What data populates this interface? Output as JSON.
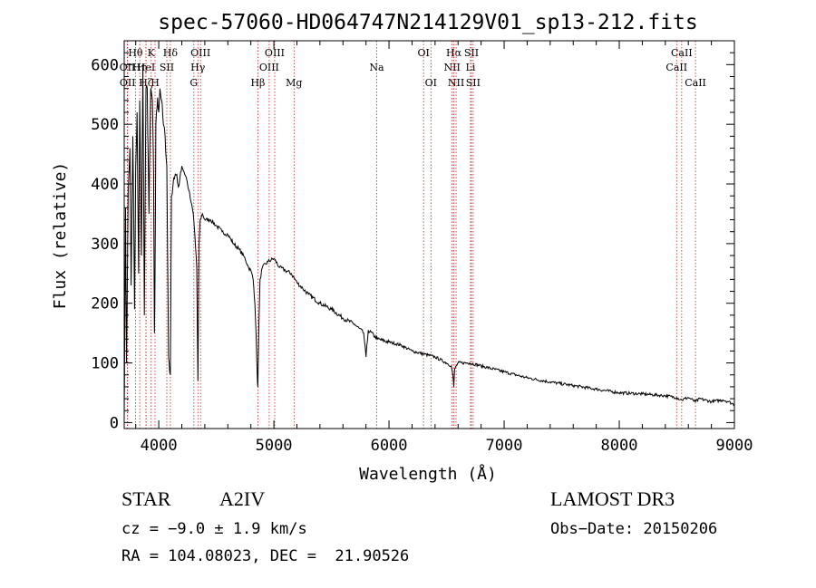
{
  "chart_data": {
    "type": "line",
    "title": "spec-57060-HD064747N214129V01_sp13-212.fits",
    "xlabel": "Wavelength (Å)",
    "ylabel": "Flux (relative)",
    "xlim": [
      3700,
      9000
    ],
    "ylim": [
      -10,
      640
    ],
    "x_ticks": [
      4000,
      5000,
      6000,
      7000,
      8000,
      9000
    ],
    "x_tick_labels": [
      "4000",
      "5000",
      "6000",
      "7000",
      "8000",
      "9000"
    ],
    "y_ticks": [
      0,
      100,
      200,
      300,
      400,
      500,
      600
    ],
    "y_tick_labels": [
      "0",
      "100",
      "200",
      "300",
      "400",
      "500",
      "600"
    ],
    "grid": false,
    "series": [
      {
        "name": "spectrum",
        "x": [
          3700,
          3705,
          3712,
          3720,
          3735,
          3750,
          3760,
          3775,
          3790,
          3800,
          3812,
          3825,
          3835,
          3850,
          3862,
          3875,
          3889,
          3900,
          3915,
          3930,
          3945,
          3955,
          3962,
          3968,
          3975,
          3990,
          4000,
          4010,
          4025,
          4040,
          4055,
          4070,
          4085,
          4101,
          4110,
          4130,
          4150,
          4170,
          4190,
          4200,
          4220,
          4240,
          4260,
          4280,
          4300,
          4315,
          4330,
          4340,
          4350,
          4360,
          4380,
          4400,
          4450,
          4500,
          4550,
          4600,
          4650,
          4700,
          4750,
          4780,
          4800,
          4820,
          4835,
          4845,
          4855,
          4861,
          4868,
          4880,
          4900,
          4950,
          5000,
          5050,
          5100,
          5150,
          5200,
          5250,
          5300,
          5400,
          5500,
          5600,
          5700,
          5780,
          5800,
          5820,
          5900,
          6000,
          6100,
          6200,
          6300,
          6400,
          6500,
          6540,
          6555,
          6563,
          6570,
          6585,
          6600,
          6700,
          6800,
          7000,
          7200,
          7400,
          7600,
          7800,
          8000,
          8200,
          8400,
          8498,
          8542,
          8600,
          8662,
          8700,
          8800,
          8900,
          8950,
          9000
        ],
        "values": [
          10,
          150,
          360,
          100,
          390,
          460,
          230,
          480,
          190,
          430,
          520,
          250,
          540,
          280,
          600,
          180,
          560,
          560,
          350,
          560,
          540,
          420,
          150,
          250,
          500,
          545,
          520,
          560,
          540,
          500,
          480,
          430,
          110,
          80,
          380,
          410,
          415,
          395,
          420,
          430,
          420,
          410,
          390,
          370,
          350,
          310,
          260,
          70,
          300,
          340,
          350,
          340,
          340,
          330,
          320,
          315,
          300,
          290,
          275,
          260,
          255,
          240,
          200,
          150,
          80,
          60,
          150,
          240,
          260,
          270,
          275,
          260,
          255,
          250,
          235,
          225,
          215,
          200,
          190,
          175,
          165,
          150,
          110,
          155,
          140,
          135,
          130,
          120,
          115,
          110,
          100,
          95,
          80,
          60,
          90,
          95,
          100,
          100,
          95,
          85,
          75,
          68,
          62,
          56,
          50,
          48,
          45,
          42,
          38,
          42,
          35,
          40,
          35,
          38,
          35,
          30
        ]
      }
    ],
    "line_markers": [
      {
        "label": "Hθ",
        "wave": 3798,
        "row": 0
      },
      {
        "label": "OII",
        "wave": 3727,
        "row": 1
      },
      {
        "label": "OII",
        "wave": 3729,
        "row": 2
      },
      {
        "label": "Hη",
        "wave": 3835,
        "row": 1
      },
      {
        "label": "Hζ",
        "wave": 3889,
        "row": 2
      },
      {
        "label": "HeI",
        "wave": 3889,
        "row": 1
      },
      {
        "label": "K",
        "wave": 3934,
        "row": 0
      },
      {
        "label": "H",
        "wave": 3968,
        "row": 2
      },
      {
        "label": "SII",
        "wave": 4070,
        "row": 1
      },
      {
        "label": "Hδ",
        "wave": 4101,
        "row": 0
      },
      {
        "label": "OIII",
        "wave": 4363,
        "row": 0
      },
      {
        "label": "Hγ",
        "wave": 4340,
        "row": 1
      },
      {
        "label": "G",
        "wave": 4305,
        "row": 2
      },
      {
        "label": "Hβ",
        "wave": 4861,
        "row": 2
      },
      {
        "label": "OIII",
        "wave": 5007,
        "row": 0
      },
      {
        "label": "OIII",
        "wave": 4959,
        "row": 1
      },
      {
        "label": "Mg",
        "wave": 5175,
        "row": 2
      },
      {
        "label": "Na",
        "wave": 5893,
        "row": 1
      },
      {
        "label": "OI",
        "wave": 6300,
        "row": 0
      },
      {
        "label": "OI",
        "wave": 6364,
        "row": 2
      },
      {
        "label": "Hα",
        "wave": 6563,
        "row": 0
      },
      {
        "label": "NII",
        "wave": 6548,
        "row": 1
      },
      {
        "label": "NII",
        "wave": 6583,
        "row": 2
      },
      {
        "label": "SII",
        "wave": 6716,
        "row": 0
      },
      {
        "label": "Li",
        "wave": 6708,
        "row": 1
      },
      {
        "label": "SII",
        "wave": 6731,
        "row": 2
      },
      {
        "label": "CaII",
        "wave": 8542,
        "row": 0
      },
      {
        "label": "CaII",
        "wave": 8498,
        "row": 1
      },
      {
        "label": "CaII",
        "wave": 8662,
        "row": 2
      }
    ]
  },
  "info": {
    "class": "STAR",
    "subclass": "A2IV",
    "survey": "LAMOST DR3",
    "cz": "cz = −9.0 ± 1.9 km/s",
    "obs_date": "Obs−Date: 20150206",
    "radec": "RA = 104.08023, DEC =  21.90526"
  }
}
